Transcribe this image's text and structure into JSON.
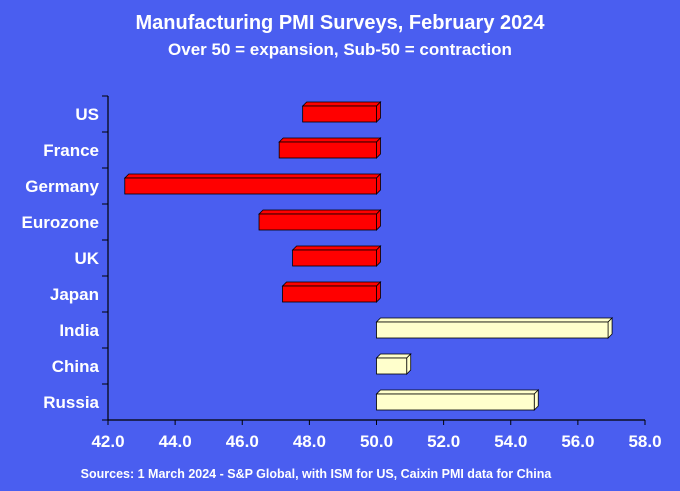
{
  "chart_data": {
    "type": "bar",
    "orientation": "horizontal",
    "title": "Manufacturing PMI Surveys, February 2024",
    "subtitle": "Over 50 = expansion, Sub-50 = contraction",
    "categories": [
      "US",
      "France",
      "Germany",
      "Eurozone",
      "UK",
      "Japan",
      "India",
      "China",
      "Russia"
    ],
    "values": [
      47.8,
      47.1,
      42.5,
      46.5,
      47.5,
      47.2,
      56.9,
      50.9,
      54.7
    ],
    "baseline": 50.0,
    "xlim": [
      42.0,
      58.0
    ],
    "x_ticks": [
      "42.0",
      "44.0",
      "46.0",
      "48.0",
      "50.0",
      "52.0",
      "54.0",
      "56.0",
      "58.0"
    ],
    "grid": false,
    "bar_style": "3d",
    "colors": {
      "contraction": "#ff0000",
      "expansion": "#ffffcc",
      "background": "#4a5ef0",
      "text": "#ffffff",
      "axis": "#000000"
    },
    "source": "Sources: 1 March 2024 - S&P Global, with ISM for US, Caixin PMI data for China"
  }
}
